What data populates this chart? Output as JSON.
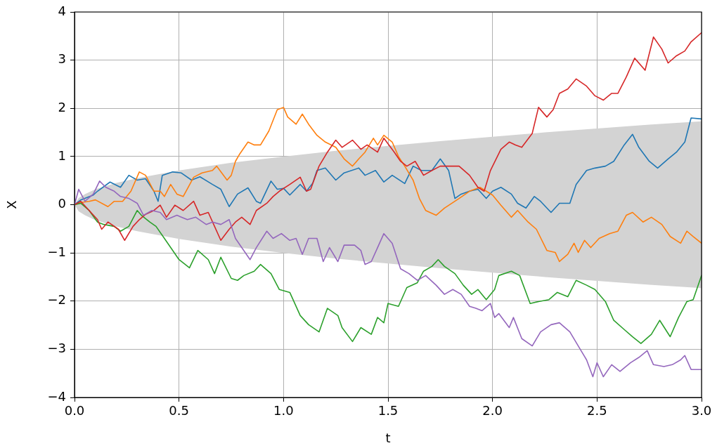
{
  "chart_data": {
    "type": "line",
    "xlabel": "t",
    "ylabel": "X",
    "xlim": [
      0,
      3
    ],
    "xticks": [
      {
        "value": 0,
        "label": "0.0"
      },
      0.5,
      {
        "value": 1,
        "label": "1.0"
      },
      1.5,
      {
        "value": 2,
        "label": "2.0"
      },
      2.5,
      {
        "value": 3,
        "label": "3.0"
      }
    ],
    "ylim": [
      -4,
      4
    ],
    "yticks": [
      {
        "value": -4,
        "label": "−4"
      },
      {
        "value": -3,
        "label": "−3"
      },
      {
        "value": -2,
        "label": "−2"
      },
      {
        "value": -1,
        "label": "−1"
      },
      0,
      1,
      2,
      3,
      4
    ],
    "grid": true,
    "series": [
      {
        "type": "area",
        "color": "#d3d3d3",
        "x": [
          0,
          0.02,
          0.05,
          0.1,
          0.2,
          0.3,
          0.5,
          0.75,
          1,
          1.25,
          1.5,
          1.75,
          2,
          2.25,
          2.5,
          2.75,
          3
        ],
        "values": [
          null,
          null,
          null,
          null,
          null,
          null,
          null,
          null,
          null,
          null,
          null,
          null,
          null,
          null,
          null,
          null,
          null
        ],
        "lower": [
          0,
          -0.14,
          -0.22,
          -0.32,
          -0.45,
          -0.55,
          -0.71,
          -0.87,
          -1,
          -1.12,
          -1.22,
          -1.32,
          -1.41,
          -1.5,
          -1.58,
          -1.66,
          -1.73
        ],
        "upper": [
          0,
          0.14,
          0.22,
          0.32,
          0.45,
          0.55,
          0.71,
          0.87,
          1,
          1.12,
          1.22,
          1.32,
          1.41,
          1.5,
          1.58,
          1.66,
          1.73
        ]
      },
      {
        "color": "#1f77b4",
        "x": [
          0,
          0.03,
          0.06,
          0.09,
          0.11,
          0.17,
          0.22,
          0.26,
          0.3,
          0.34,
          0.38,
          0.4,
          0.42,
          0.47,
          0.51,
          0.56,
          0.6,
          0.66,
          0.7,
          0.74,
          0.78,
          0.83,
          0.87,
          0.89,
          0.94,
          0.97,
          1.0,
          1.03,
          1.08,
          1.11,
          1.14,
          1.16,
          1.2,
          1.25,
          1.29,
          1.36,
          1.39,
          1.44,
          1.48,
          1.52,
          1.58,
          1.62,
          1.66,
          1.71,
          1.75,
          1.79,
          1.82,
          1.85,
          1.89,
          1.93,
          1.97,
          2.0,
          2.04,
          2.09,
          2.12,
          2.16,
          2.2,
          2.23,
          2.28,
          2.32,
          2.37,
          2.4,
          2.45,
          2.49,
          2.54,
          2.58,
          2.63,
          2.67,
          2.7,
          2.75,
          2.79,
          2.84,
          2.88,
          2.92,
          2.95,
          3.0
        ],
        "values": [
          0,
          0.1,
          0.15,
          0.2,
          0.28,
          0.47,
          0.36,
          0.61,
          0.51,
          0.54,
          0.28,
          0.07,
          0.61,
          0.68,
          0.66,
          0.51,
          0.58,
          0.42,
          0.32,
          -0.04,
          0.22,
          0.35,
          0.07,
          0.03,
          0.49,
          0.32,
          0.34,
          0.2,
          0.42,
          0.28,
          0.45,
          0.71,
          0.76,
          0.51,
          0.66,
          0.76,
          0.61,
          0.71,
          0.47,
          0.61,
          0.44,
          0.8,
          0.71,
          0.71,
          0.95,
          0.71,
          0.13,
          0.22,
          0.28,
          0.32,
          0.13,
          0.28,
          0.36,
          0.22,
          0.03,
          -0.07,
          0.17,
          0.07,
          -0.16,
          0.03,
          0.03,
          0.42,
          0.71,
          0.76,
          0.8,
          0.9,
          1.24,
          1.46,
          1.19,
          0.9,
          0.76,
          0.95,
          1.09,
          1.3,
          1.8,
          1.78
        ]
      },
      {
        "color": "#ff7f0e",
        "x": [
          0,
          0.04,
          0.07,
          0.1,
          0.16,
          0.19,
          0.23,
          0.27,
          0.31,
          0.34,
          0.38,
          0.41,
          0.43,
          0.46,
          0.49,
          0.52,
          0.57,
          0.61,
          0.66,
          0.68,
          0.73,
          0.75,
          0.77,
          0.79,
          0.83,
          0.86,
          0.89,
          0.93,
          0.97,
          1.0,
          1.02,
          1.06,
          1.09,
          1.12,
          1.16,
          1.2,
          1.25,
          1.29,
          1.33,
          1.36,
          1.39,
          1.43,
          1.45,
          1.48,
          1.52,
          1.55,
          1.58,
          1.62,
          1.65,
          1.68,
          1.73,
          1.77,
          1.84,
          1.89,
          1.94,
          2.0,
          2.04,
          2.09,
          2.12,
          2.17,
          2.21,
          2.26,
          2.3,
          2.32,
          2.36,
          2.39,
          2.41,
          2.44,
          2.47,
          2.51,
          2.56,
          2.6,
          2.64,
          2.67,
          2.72,
          2.76,
          2.81,
          2.85,
          2.9,
          2.93,
          2.96,
          3.0
        ],
        "values": [
          0,
          0.05,
          0.07,
          0.1,
          -0.04,
          0.07,
          0.07,
          0.28,
          0.68,
          0.61,
          0.28,
          0.28,
          0.17,
          0.42,
          0.22,
          0.17,
          0.57,
          0.66,
          0.71,
          0.8,
          0.51,
          0.61,
          0.9,
          1.05,
          1.3,
          1.24,
          1.24,
          1.53,
          1.97,
          2.02,
          1.82,
          1.67,
          1.88,
          1.67,
          1.44,
          1.3,
          1.19,
          0.95,
          0.8,
          0.95,
          1.09,
          1.38,
          1.24,
          1.44,
          1.3,
          1.0,
          0.8,
          0.51,
          0.13,
          -0.12,
          -0.22,
          -0.07,
          0.13,
          0.28,
          0.36,
          0.2,
          -0.01,
          -0.26,
          -0.12,
          -0.36,
          -0.51,
          -0.95,
          -0.99,
          -1.18,
          -1.03,
          -0.8,
          -0.99,
          -0.74,
          -0.89,
          -0.7,
          -0.6,
          -0.55,
          -0.22,
          -0.16,
          -0.36,
          -0.26,
          -0.41,
          -0.66,
          -0.8,
          -0.55,
          -0.66,
          -0.8
        ]
      },
      {
        "color": "#2ca02c",
        "x": [
          0,
          0.03,
          0.07,
          0.11,
          0.14,
          0.19,
          0.22,
          0.26,
          0.3,
          0.32,
          0.36,
          0.39,
          0.43,
          0.47,
          0.5,
          0.55,
          0.59,
          0.64,
          0.67,
          0.7,
          0.75,
          0.78,
          0.81,
          0.86,
          0.89,
          0.94,
          0.98,
          1.03,
          1.08,
          1.12,
          1.17,
          1.21,
          1.26,
          1.28,
          1.33,
          1.37,
          1.42,
          1.45,
          1.48,
          1.5,
          1.55,
          1.59,
          1.64,
          1.67,
          1.71,
          1.74,
          1.77,
          1.82,
          1.86,
          1.9,
          1.93,
          1.97,
          2.01,
          2.03,
          2.09,
          2.13,
          2.18,
          2.22,
          2.27,
          2.31,
          2.36,
          2.4,
          2.45,
          2.49,
          2.54,
          2.58,
          2.63,
          2.67,
          2.71,
          2.76,
          2.8,
          2.85,
          2.89,
          2.93,
          2.96,
          3.0
        ],
        "values": [
          0,
          0.03,
          -0.12,
          -0.36,
          -0.41,
          -0.45,
          -0.55,
          -0.45,
          -0.12,
          -0.22,
          -0.36,
          -0.45,
          -0.7,
          -0.95,
          -1.14,
          -1.31,
          -0.95,
          -1.14,
          -1.43,
          -1.09,
          -1.53,
          -1.57,
          -1.47,
          -1.38,
          -1.24,
          -1.43,
          -1.76,
          -1.82,
          -2.3,
          -2.49,
          -2.64,
          -2.15,
          -2.3,
          -2.55,
          -2.84,
          -2.55,
          -2.69,
          -2.34,
          -2.45,
          -2.05,
          -2.11,
          -1.72,
          -1.62,
          -1.38,
          -1.28,
          -1.14,
          -1.28,
          -1.43,
          -1.67,
          -1.86,
          -1.76,
          -1.97,
          -1.76,
          -1.47,
          -1.38,
          -1.47,
          -2.05,
          -2.01,
          -1.97,
          -1.82,
          -1.91,
          -1.57,
          -1.67,
          -1.76,
          -2.01,
          -2.4,
          -2.59,
          -2.74,
          -2.88,
          -2.69,
          -2.4,
          -2.74,
          -2.34,
          -2.01,
          -1.97,
          -1.47
        ]
      },
      {
        "color": "#d62728",
        "x": [
          0,
          0.03,
          0.07,
          0.11,
          0.13,
          0.16,
          0.21,
          0.24,
          0.28,
          0.31,
          0.34,
          0.38,
          0.41,
          0.44,
          0.48,
          0.52,
          0.57,
          0.6,
          0.64,
          0.67,
          0.7,
          0.74,
          0.77,
          0.8,
          0.84,
          0.87,
          0.92,
          0.95,
          0.98,
          1.03,
          1.08,
          1.11,
          1.13,
          1.17,
          1.21,
          1.25,
          1.28,
          1.33,
          1.37,
          1.4,
          1.45,
          1.48,
          1.53,
          1.56,
          1.59,
          1.63,
          1.67,
          1.71,
          1.75,
          1.8,
          1.84,
          1.89,
          1.93,
          1.96,
          1.99,
          2.04,
          2.08,
          2.11,
          2.14,
          2.19,
          2.22,
          2.26,
          2.29,
          2.32,
          2.36,
          2.4,
          2.45,
          2.49,
          2.53,
          2.57,
          2.6,
          2.64,
          2.68,
          2.73,
          2.77,
          2.81,
          2.84,
          2.88,
          2.92,
          2.95,
          3.0
        ],
        "values": [
          0,
          0.07,
          -0.12,
          -0.31,
          -0.51,
          -0.36,
          -0.51,
          -0.74,
          -0.45,
          -0.31,
          -0.2,
          -0.12,
          -0.01,
          -0.26,
          -0.01,
          -0.12,
          0.07,
          -0.22,
          -0.16,
          -0.45,
          -0.74,
          -0.51,
          -0.36,
          -0.26,
          -0.41,
          -0.12,
          0.03,
          0.17,
          0.28,
          0.42,
          0.57,
          0.28,
          0.32,
          0.8,
          1.09,
          1.34,
          1.19,
          1.34,
          1.15,
          1.24,
          1.09,
          1.38,
          1.09,
          0.9,
          0.8,
          0.9,
          0.61,
          0.71,
          0.8,
          0.8,
          0.8,
          0.61,
          0.36,
          0.28,
          0.71,
          1.15,
          1.3,
          1.24,
          1.19,
          1.48,
          2.02,
          1.82,
          1.97,
          2.31,
          2.4,
          2.61,
          2.46,
          2.26,
          2.17,
          2.31,
          2.31,
          2.65,
          3.04,
          2.79,
          3.48,
          3.23,
          2.94,
          3.09,
          3.19,
          3.38,
          3.57
        ]
      },
      {
        "color": "#9467bd",
        "x": [
          0,
          0.02,
          0.05,
          0.09,
          0.12,
          0.15,
          0.19,
          0.22,
          0.26,
          0.3,
          0.33,
          0.37,
          0.41,
          0.44,
          0.49,
          0.54,
          0.58,
          0.63,
          0.66,
          0.7,
          0.74,
          0.77,
          0.8,
          0.84,
          0.87,
          0.92,
          0.95,
          0.99,
          1.03,
          1.06,
          1.09,
          1.12,
          1.16,
          1.19,
          1.22,
          1.26,
          1.29,
          1.34,
          1.37,
          1.39,
          1.42,
          1.45,
          1.48,
          1.52,
          1.56,
          1.6,
          1.64,
          1.68,
          1.73,
          1.77,
          1.81,
          1.85,
          1.89,
          1.92,
          1.95,
          1.99,
          2.01,
          2.03,
          2.08,
          2.1,
          2.14,
          2.19,
          2.23,
          2.28,
          2.32,
          2.37,
          2.41,
          2.45,
          2.48,
          2.5,
          2.53,
          2.57,
          2.61,
          2.66,
          2.7,
          2.74,
          2.77,
          2.82,
          2.86,
          2.9,
          2.92,
          2.95,
          3.0
        ],
        "values": [
          0,
          0.32,
          0.07,
          0.22,
          0.49,
          0.36,
          0.28,
          0.17,
          0.13,
          0.03,
          -0.22,
          -0.12,
          -0.16,
          -0.31,
          -0.22,
          -0.31,
          -0.26,
          -0.41,
          -0.36,
          -0.41,
          -0.31,
          -0.7,
          -0.89,
          -1.14,
          -0.89,
          -0.55,
          -0.7,
          -0.6,
          -0.74,
          -0.7,
          -1.03,
          -0.7,
          -0.7,
          -1.18,
          -0.89,
          -1.18,
          -0.84,
          -0.84,
          -0.95,
          -1.24,
          -1.18,
          -0.89,
          -0.6,
          -0.8,
          -1.33,
          -1.43,
          -1.57,
          -1.47,
          -1.67,
          -1.86,
          -1.76,
          -1.86,
          -2.11,
          -2.15,
          -2.2,
          -2.05,
          -2.34,
          -2.26,
          -2.55,
          -2.34,
          -2.78,
          -2.93,
          -2.64,
          -2.49,
          -2.45,
          -2.64,
          -2.93,
          -3.22,
          -3.57,
          -3.28,
          -3.57,
          -3.32,
          -3.46,
          -3.28,
          -3.17,
          -3.03,
          -3.32,
          -3.36,
          -3.32,
          -3.22,
          -3.13,
          -3.42,
          -3.42
        ]
      }
    ]
  }
}
